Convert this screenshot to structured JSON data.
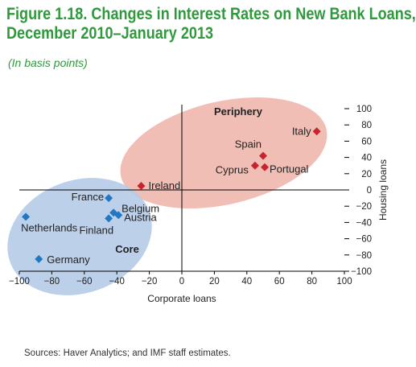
{
  "title_line1": "Figure 1.18. Changes in Interest Rates on New Bank Loans,",
  "title_line2": "December 2010–January 2013",
  "subtitle": "(In basis points)",
  "source": "Sources: Haver Analytics; and IMF staff estimates.",
  "chart_data": {
    "type": "scatter",
    "xlabel": "Corporate loans",
    "ylabel": "Housing loans",
    "xlim": [
      -100,
      100
    ],
    "ylim": [
      -100,
      100
    ],
    "xticks": [
      -100,
      -80,
      -60,
      -40,
      -20,
      0,
      20,
      40,
      60,
      80,
      100
    ],
    "yticks": [
      100,
      80,
      60,
      40,
      20,
      0,
      -20,
      -40,
      -60,
      -80,
      -100
    ],
    "xtick_labels": [
      "−100",
      "−80",
      "−60",
      "−40",
      "−20",
      "0",
      "20",
      "40",
      "60",
      "80",
      "100"
    ],
    "ytick_labels": [
      "100",
      "80",
      "60",
      "40",
      "20",
      "0",
      "−20",
      "−40",
      "−60",
      "−80",
      "−100"
    ],
    "groups": [
      {
        "name": "Periphery",
        "color": "#c8232c",
        "ellipse_color": "#f0b7ad",
        "points": [
          {
            "label": "Italy",
            "x": 83,
            "y": 72
          },
          {
            "label": "Spain",
            "x": 50,
            "y": 42
          },
          {
            "label": "Cyprus",
            "x": 45,
            "y": 30
          },
          {
            "label": "Portugal",
            "x": 51,
            "y": 28
          },
          {
            "label": "Ireland",
            "x": -25,
            "y": 5
          }
        ]
      },
      {
        "name": "Core",
        "color": "#1f78c1",
        "ellipse_color": "#b5cbe8",
        "points": [
          {
            "label": "France",
            "x": -45,
            "y": -10
          },
          {
            "label": "Belgium",
            "x": -42,
            "y": -28
          },
          {
            "label": "Austria",
            "x": -39,
            "y": -31
          },
          {
            "label": "Finland",
            "x": -45,
            "y": -35
          },
          {
            "label": "Netherlands",
            "x": -96,
            "y": -33
          },
          {
            "label": "Germany",
            "x": -88,
            "y": -85
          }
        ]
      }
    ]
  }
}
